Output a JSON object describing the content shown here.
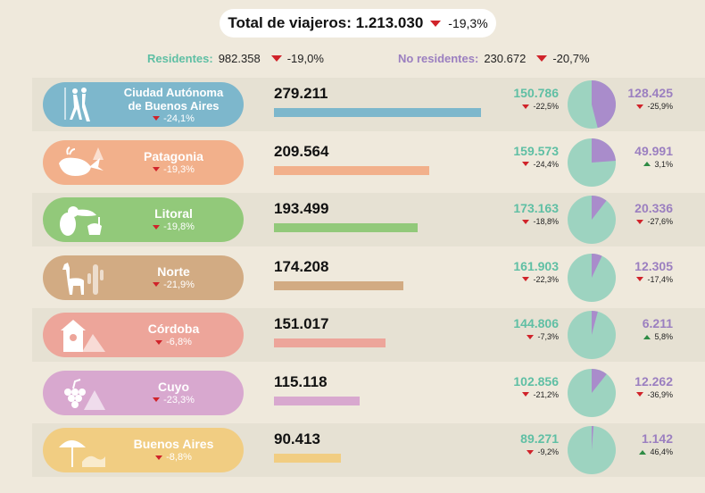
{
  "header": {
    "total_label": "Total de viajeros: 1.213.030",
    "total_change": "-19,3%"
  },
  "residents": {
    "label": "Residentes:",
    "value": "982.358",
    "change": "-19,0%"
  },
  "non_residents": {
    "label": "No residentes:",
    "value": "230.672",
    "change": "-20,7%"
  },
  "colors": {
    "residents": "#9dd3c0",
    "non_residents": "#a98ccb"
  },
  "rows": [
    {
      "name": "Ciudad Autónoma de Buenos Aires",
      "change": "-24,1%",
      "total": "279.211",
      "res": "150.786",
      "res_chg": "-22,5%",
      "nres": "128.425",
      "nres_chg": "-25,9%",
      "nres_dir": "down",
      "color": "#7db7cc",
      "bgcolor": "#e6e1d3",
      "icon": "tango-dancers-icon"
    },
    {
      "name": "Patagonia",
      "change": "-19,3%",
      "total": "209.564",
      "res": "159.573",
      "res_chg": "-24,4%",
      "nres": "49.991",
      "nres_chg": "3,1%",
      "nres_dir": "up",
      "color": "#f2b08b",
      "bgcolor": "#efe9dc",
      "icon": "whale-icon"
    },
    {
      "name": "Litoral",
      "change": "-19,8%",
      "total": "193.499",
      "res": "173.163",
      "res_chg": "-18,8%",
      "nres": "20.336",
      "nres_chg": "-27,6%",
      "nres_dir": "down",
      "color": "#92c97a",
      "bgcolor": "#e6e1d3",
      "icon": "toucan-icon"
    },
    {
      "name": "Norte",
      "change": "-21,9%",
      "total": "174.208",
      "res": "161.903",
      "res_chg": "-22,3%",
      "nres": "12.305",
      "nres_chg": "-17,4%",
      "nres_dir": "down",
      "color": "#d2ab83",
      "bgcolor": "#efe9dc",
      "icon": "llama-icon"
    },
    {
      "name": "Córdoba",
      "change": "-6,8%",
      "total": "151.017",
      "res": "144.806",
      "res_chg": "-7,3%",
      "nres": "6.211",
      "nres_chg": "5,8%",
      "nres_dir": "up",
      "color": "#eda59a",
      "bgcolor": "#e6e1d3",
      "icon": "cuckoo-clock-icon"
    },
    {
      "name": "Cuyo",
      "change": "-23,3%",
      "total": "115.118",
      "res": "102.856",
      "res_chg": "-21,2%",
      "nres": "12.262",
      "nres_chg": "-36,9%",
      "nres_dir": "down",
      "color": "#d8a8cf",
      "bgcolor": "#efe9dc",
      "icon": "grapes-icon"
    },
    {
      "name": "Buenos Aires",
      "change": "-8,8%",
      "total": "90.413",
      "res": "89.271",
      "res_chg": "-9,2%",
      "nres": "1.142",
      "nres_chg": "46,4%",
      "nres_dir": "up",
      "color": "#f1cd82",
      "bgcolor": "#e6e1d3",
      "icon": "beach-umbrella-icon"
    }
  ],
  "chart_data": {
    "type": "bar",
    "categories": [
      "Ciudad Autónoma de Buenos Aires",
      "Patagonia",
      "Litoral",
      "Norte",
      "Córdoba",
      "Cuyo",
      "Buenos Aires"
    ],
    "series": [
      {
        "name": "Residentes",
        "values": [
          150786,
          159573,
          173163,
          161903,
          144806,
          102856,
          89271
        ]
      },
      {
        "name": "No residentes",
        "values": [
          128425,
          49991,
          20336,
          12305,
          6211,
          12262,
          1142
        ]
      }
    ],
    "totals": [
      279211,
      209564,
      193499,
      174208,
      151017,
      115118,
      90413
    ],
    "xlim": [
      0,
      279211
    ]
  }
}
